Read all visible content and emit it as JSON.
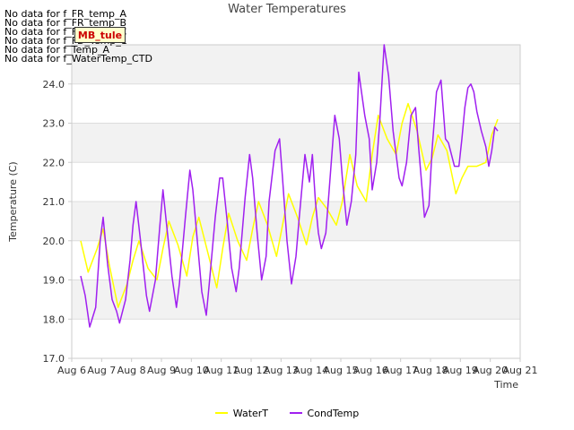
{
  "chart_data": {
    "type": "line",
    "title": "Water Temperatures",
    "xlabel": "Time",
    "ylabel": "Temperature (C)",
    "xlim": [
      6,
      21
    ],
    "ylim": [
      17.0,
      25.0
    ],
    "x_ticks": [
      {
        "v": 6,
        "label": "Aug 6"
      },
      {
        "v": 7,
        "label": "Aug 7"
      },
      {
        "v": 8,
        "label": "Aug 8"
      },
      {
        "v": 9,
        "label": "Aug 9"
      },
      {
        "v": 10,
        "label": "Aug 10"
      },
      {
        "v": 11,
        "label": "Aug 11"
      },
      {
        "v": 12,
        "label": "Aug 12"
      },
      {
        "v": 13,
        "label": "Aug 13"
      },
      {
        "v": 14,
        "label": "Aug 14"
      },
      {
        "v": 15,
        "label": "Aug 15"
      },
      {
        "v": 16,
        "label": "Aug 16"
      },
      {
        "v": 17,
        "label": "Aug 17"
      },
      {
        "v": 18,
        "label": "Aug 18"
      },
      {
        "v": 19,
        "label": "Aug 19"
      },
      {
        "v": 20,
        "label": "Aug 20"
      },
      {
        "v": 21,
        "label": "Aug 21"
      }
    ],
    "y_ticks": [
      {
        "v": 17,
        "label": "17.0"
      },
      {
        "v": 18,
        "label": "18.0"
      },
      {
        "v": 19,
        "label": "19.0"
      },
      {
        "v": 20,
        "label": "20.0"
      },
      {
        "v": 21,
        "label": "21.0"
      },
      {
        "v": 22,
        "label": "22.0"
      },
      {
        "v": 23,
        "label": "23.0"
      },
      {
        "v": 24,
        "label": "24.0"
      }
    ],
    "grid": true,
    "legend_position": "bottom-center",
    "series": [
      {
        "name": "WaterT",
        "color": "#ffff00",
        "x": [
          6.3,
          6.55,
          6.85,
          7.05,
          7.25,
          7.55,
          7.85,
          8.05,
          8.25,
          8.55,
          8.85,
          9.05,
          9.25,
          9.55,
          9.85,
          10.05,
          10.25,
          10.55,
          10.85,
          11.05,
          11.25,
          11.55,
          11.85,
          12.05,
          12.25,
          12.55,
          12.85,
          13.05,
          13.25,
          13.55,
          13.85,
          14.05,
          14.25,
          14.55,
          14.85,
          15.05,
          15.3,
          15.55,
          15.85,
          16.05,
          16.25,
          16.55,
          16.85,
          17.05,
          17.25,
          17.55,
          17.85,
          18.05,
          18.25,
          18.55,
          18.85,
          19.05,
          19.25,
          19.55,
          19.85,
          20.05,
          20.25
        ],
        "y": [
          20.0,
          19.2,
          19.8,
          20.3,
          19.4,
          18.3,
          18.9,
          19.5,
          20.0,
          19.3,
          19.0,
          19.8,
          20.5,
          19.9,
          19.1,
          20.1,
          20.6,
          19.7,
          18.8,
          19.8,
          20.7,
          20.0,
          19.5,
          20.3,
          21.0,
          20.4,
          19.6,
          20.4,
          21.2,
          20.6,
          19.9,
          20.6,
          21.1,
          20.8,
          20.4,
          21.0,
          22.2,
          21.4,
          21.0,
          22.2,
          23.2,
          22.6,
          22.2,
          23.0,
          23.5,
          22.8,
          21.8,
          22.1,
          22.7,
          22.3,
          21.2,
          21.6,
          21.9,
          21.9,
          22.0,
          22.7,
          23.1
        ]
      },
      {
        "name": "CondTemp",
        "color": "#a020f0",
        "x": [
          6.3,
          6.45,
          6.6,
          6.8,
          6.95,
          7.05,
          7.2,
          7.35,
          7.5,
          7.6,
          7.8,
          7.95,
          8.05,
          8.15,
          8.3,
          8.5,
          8.6,
          8.8,
          8.95,
          9.05,
          9.2,
          9.35,
          9.5,
          9.6,
          9.8,
          9.95,
          10.05,
          10.2,
          10.35,
          10.5,
          10.6,
          10.8,
          10.95,
          11.05,
          11.2,
          11.35,
          11.5,
          11.6,
          11.8,
          11.95,
          12.05,
          12.2,
          12.35,
          12.5,
          12.6,
          12.8,
          12.95,
          13.05,
          13.2,
          13.35,
          13.5,
          13.6,
          13.8,
          13.95,
          14.05,
          14.15,
          14.25,
          14.35,
          14.5,
          14.6,
          14.8,
          14.95,
          15.05,
          15.2,
          15.35,
          15.5,
          15.6,
          15.8,
          15.95,
          16.05,
          16.2,
          16.3,
          16.45,
          16.6,
          16.75,
          16.95,
          17.05,
          17.2,
          17.35,
          17.5,
          17.6,
          17.8,
          17.95,
          18.05,
          18.2,
          18.35,
          18.5,
          18.6,
          18.8,
          18.95,
          19.05,
          19.15,
          19.25,
          19.35,
          19.45,
          19.55,
          19.7,
          19.85,
          19.95,
          20.05,
          20.15,
          20.25
        ],
        "y": [
          19.1,
          18.6,
          17.8,
          18.3,
          20.0,
          20.6,
          19.4,
          18.5,
          18.2,
          17.9,
          18.5,
          19.5,
          20.4,
          21.0,
          20.0,
          18.6,
          18.2,
          19.0,
          20.4,
          21.3,
          20.2,
          19.1,
          18.3,
          18.9,
          20.6,
          21.8,
          21.3,
          20.0,
          18.7,
          18.1,
          18.9,
          20.6,
          21.6,
          21.6,
          20.5,
          19.3,
          18.7,
          19.3,
          21.1,
          22.2,
          21.6,
          20.2,
          19.0,
          19.6,
          21.0,
          22.3,
          22.6,
          21.6,
          20.0,
          18.9,
          19.6,
          20.5,
          22.2,
          21.5,
          22.2,
          21.0,
          20.2,
          19.8,
          20.2,
          21.2,
          23.2,
          22.6,
          21.6,
          20.4,
          21.0,
          22.2,
          24.3,
          23.2,
          22.6,
          21.3,
          22.0,
          23.0,
          25.0,
          24.2,
          22.8,
          21.6,
          21.4,
          22.0,
          23.2,
          23.4,
          22.4,
          20.6,
          20.9,
          22.3,
          23.8,
          24.1,
          22.6,
          22.5,
          21.9,
          21.9,
          22.6,
          23.4,
          23.9,
          24.0,
          23.8,
          23.3,
          22.8,
          22.4,
          21.9,
          22.3,
          22.9,
          22.8
        ],
        "clip_note": ""
      }
    ]
  },
  "no_data_messages": [
    "No data for f_FR_temp_A",
    "No data for f_FR_temp_B",
    "No data for f_FR_temp_C",
    "No data for f_FD_Temp_1",
    "No data for f_Temp_A",
    "No data for f_WaterTemp_CTD"
  ],
  "badge_label": "MB_tule"
}
